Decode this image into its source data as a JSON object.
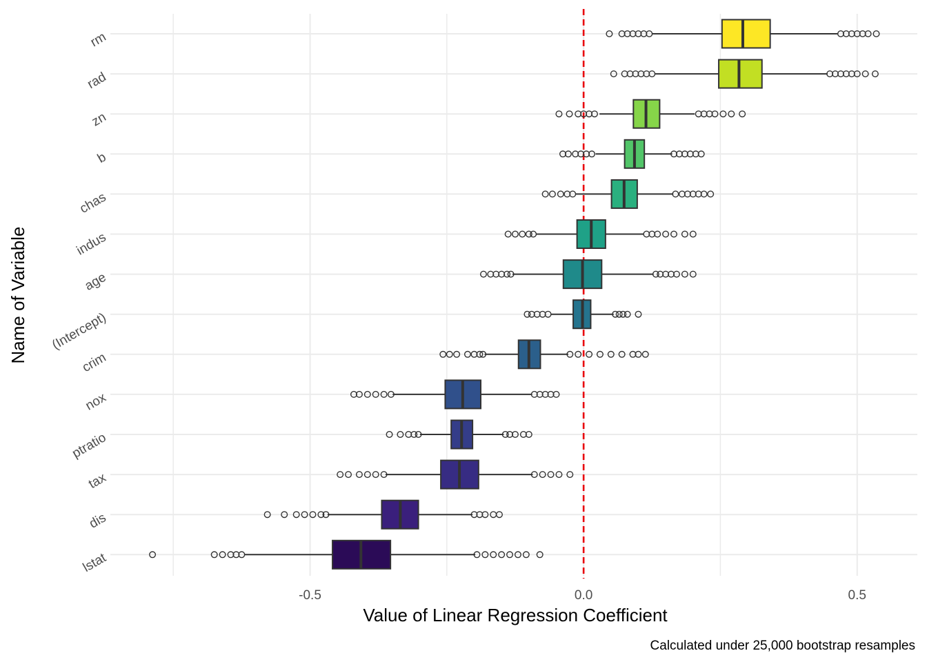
{
  "chart_data": {
    "type": "boxplot",
    "orientation": "horizontal",
    "title": "",
    "xlabel": "Value of Linear Regression Coefficient",
    "ylabel": "Name of Variable",
    "caption": "Calculated under 25,000 bootstrap resamples",
    "xlim": [
      -0.865,
      0.61
    ],
    "x_ticks": [
      -0.5,
      0.0,
      0.5
    ],
    "x_tick_labels": [
      "-0.5",
      "0.0",
      "0.5"
    ],
    "reference_line": {
      "x": 0.0,
      "style": "dashed",
      "color": "#e8000b"
    },
    "grid": true,
    "legend": "none",
    "categories": [
      "rm",
      "rad",
      "zn",
      "b",
      "chas",
      "indus",
      "age",
      "(Intercept)",
      "crim",
      "nox",
      "ptratio",
      "tax",
      "dis",
      "lstat"
    ],
    "series": [
      {
        "category": "rm",
        "color": "#fde725",
        "q1": 0.253,
        "median": 0.291,
        "q3": 0.341,
        "whisker_low": 0.125,
        "whisker_high": 0.464,
        "outliers_low": [
          0.047,
          0.07,
          0.08,
          0.09,
          0.1,
          0.11,
          0.12
        ],
        "outliers_high": [
          0.47,
          0.48,
          0.49,
          0.5,
          0.51,
          0.52,
          0.535
        ]
      },
      {
        "category": "rad",
        "color": "#c2df23",
        "q1": 0.247,
        "median": 0.284,
        "q3": 0.326,
        "whisker_low": 0.131,
        "whisker_high": 0.446,
        "outliers_low": [
          0.055,
          0.075,
          0.085,
          0.095,
          0.105,
          0.115,
          0.125
        ],
        "outliers_high": [
          0.45,
          0.46,
          0.47,
          0.48,
          0.49,
          0.5,
          0.515,
          0.533
        ]
      },
      {
        "category": "zn",
        "color": "#86d549",
        "q1": 0.091,
        "median": 0.114,
        "q3": 0.139,
        "whisker_low": 0.029,
        "whisker_high": 0.203,
        "outliers_low": [
          -0.045,
          -0.026,
          -0.01,
          0.0,
          0.01,
          0.02
        ],
        "outliers_high": [
          0.21,
          0.22,
          0.23,
          0.24,
          0.255,
          0.27,
          0.29
        ]
      },
      {
        "category": "b",
        "color": "#52c569",
        "q1": 0.075,
        "median": 0.093,
        "q3": 0.111,
        "whisker_low": 0.022,
        "whisker_high": 0.162,
        "outliers_low": [
          -0.038,
          -0.028,
          -0.015,
          -0.005,
          0.005,
          0.015
        ],
        "outliers_high": [
          0.165,
          0.175,
          0.185,
          0.195,
          0.205,
          0.215
        ]
      },
      {
        "category": "chas",
        "color": "#2ab07f",
        "q1": 0.051,
        "median": 0.074,
        "q3": 0.098,
        "whisker_low": -0.015,
        "whisker_high": 0.164,
        "outliers_low": [
          -0.07,
          -0.057,
          -0.042,
          -0.03,
          -0.02
        ],
        "outliers_high": [
          0.168,
          0.18,
          0.19,
          0.2,
          0.21,
          0.22,
          0.232
        ]
      },
      {
        "category": "indus",
        "color": "#1fa187",
        "q1": -0.012,
        "median": 0.014,
        "q3": 0.04,
        "whisker_low": -0.087,
        "whisker_high": 0.11,
        "outliers_low": [
          -0.138,
          -0.125,
          -0.112,
          -0.1,
          -0.092
        ],
        "outliers_high": [
          0.115,
          0.125,
          0.135,
          0.15,
          0.165,
          0.185,
          0.2
        ]
      },
      {
        "category": "age",
        "color": "#1f8a8a",
        "q1": -0.037,
        "median": -0.002,
        "q3": 0.033,
        "whisker_low": -0.13,
        "whisker_high": 0.128,
        "outliers_low": [
          -0.183,
          -0.17,
          -0.16,
          -0.15,
          -0.14,
          -0.133
        ],
        "outliers_high": [
          0.132,
          0.14,
          0.15,
          0.16,
          0.17,
          0.185,
          0.2
        ]
      },
      {
        "category": "(Intercept)",
        "color": "#25748e",
        "q1": -0.019,
        "median": -0.002,
        "q3": 0.013,
        "whisker_low": -0.06,
        "whisker_high": 0.055,
        "outliers_low": [
          -0.103,
          -0.095,
          -0.085,
          -0.075,
          -0.065
        ],
        "outliers_high": [
          0.058,
          0.065,
          0.072,
          0.08,
          0.1
        ]
      },
      {
        "category": "crim",
        "color": "#2b5f8b",
        "q1": -0.119,
        "median": -0.1,
        "q3": -0.079,
        "whisker_low": -0.181,
        "whisker_high": -0.028,
        "outliers_low": [
          -0.257,
          -0.245,
          -0.232,
          -0.212,
          -0.2,
          -0.19,
          -0.184
        ],
        "outliers_high": [
          -0.025,
          -0.01,
          0.01,
          0.03,
          0.05,
          0.07,
          0.09,
          0.1,
          0.113
        ]
      },
      {
        "category": "nox",
        "color": "#30508b",
        "q1": -0.253,
        "median": -0.221,
        "q3": -0.188,
        "whisker_low": -0.349,
        "whisker_high": -0.094,
        "outliers_low": [
          -0.42,
          -0.41,
          -0.395,
          -0.38,
          -0.365,
          -0.352
        ],
        "outliers_high": [
          -0.09,
          -0.08,
          -0.07,
          -0.06,
          -0.05
        ]
      },
      {
        "category": "ptratio",
        "color": "#343d89",
        "q1": -0.242,
        "median": -0.223,
        "q3": -0.203,
        "whisker_low": -0.299,
        "whisker_high": -0.146,
        "outliers_low": [
          -0.355,
          -0.335,
          -0.32,
          -0.31,
          -0.302
        ],
        "outliers_high": [
          -0.143,
          -0.135,
          -0.125,
          -0.11,
          -0.1
        ]
      },
      {
        "category": "tax",
        "color": "#372c83",
        "q1": -0.261,
        "median": -0.227,
        "q3": -0.192,
        "whisker_low": -0.362,
        "whisker_high": -0.093,
        "outliers_low": [
          -0.445,
          -0.43,
          -0.41,
          -0.395,
          -0.38,
          -0.365
        ],
        "outliers_high": [
          -0.09,
          -0.075,
          -0.06,
          -0.045,
          -0.025
        ]
      },
      {
        "category": "dis",
        "color": "#3a1f7c",
        "q1": -0.369,
        "median": -0.335,
        "q3": -0.302,
        "whisker_low": -0.468,
        "whisker_high": -0.203,
        "outliers_low": [
          -0.578,
          -0.547,
          -0.525,
          -0.51,
          -0.495,
          -0.48,
          -0.471
        ],
        "outliers_high": [
          -0.2,
          -0.19,
          -0.18,
          -0.165,
          -0.154
        ]
      },
      {
        "category": "lstat",
        "color": "#2b0b57",
        "q1": -0.459,
        "median": -0.407,
        "q3": -0.353,
        "whisker_low": -0.62,
        "whisker_high": -0.198,
        "outliers_low": [
          -0.788,
          -0.675,
          -0.66,
          -0.645,
          -0.635,
          -0.625
        ],
        "outliers_high": [
          -0.195,
          -0.18,
          -0.165,
          -0.15,
          -0.135,
          -0.12,
          -0.105,
          -0.08
        ]
      }
    ]
  }
}
